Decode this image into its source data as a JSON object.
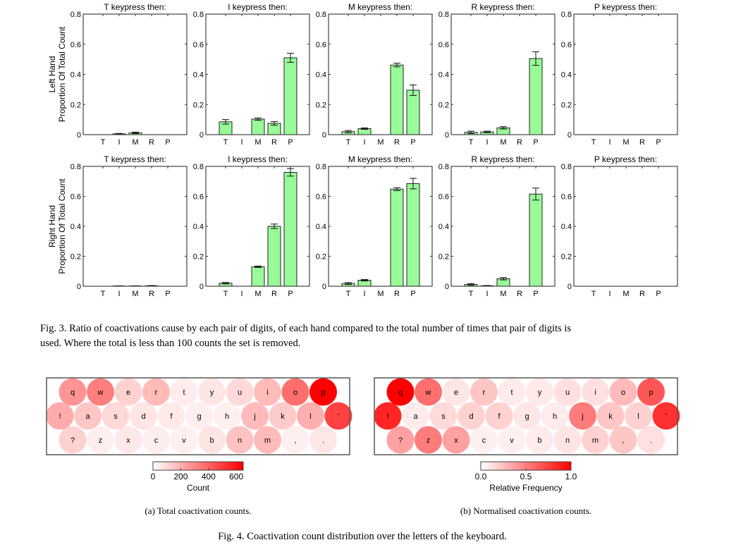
{
  "fig3": {
    "chart_data": {
      "type": "bar",
      "categories": [
        "T",
        "I",
        "M",
        "R",
        "P"
      ],
      "ylim": [
        0,
        0.8
      ],
      "yticks": [
        "0",
        "0.2",
        "0.4",
        "0.6",
        "0.8"
      ],
      "bar_color": "#98fb98",
      "rows": [
        {
          "ylabel": [
            "Left Hand",
            "Proportion Of Total Count"
          ],
          "panels": [
            {
              "title": "T keypress then:",
              "values": [
                0,
                0.005,
                0.012,
                0,
                0
              ],
              "errors": [
                0,
                0.003,
                0.005,
                0,
                0
              ]
            },
            {
              "title": "I keypress then:",
              "values": [
                0.085,
                0,
                0.103,
                0.075,
                0.51
              ],
              "errors": [
                0.015,
                0,
                0.008,
                0.012,
                0.03
              ]
            },
            {
              "title": "M keypress then:",
              "values": [
                0.02,
                0.04,
                0,
                0.462,
                0.295
              ],
              "errors": [
                0.008,
                0.005,
                0,
                0.012,
                0.035
              ]
            },
            {
              "title": "R keypress then:",
              "values": [
                0.015,
                0.018,
                0.045,
                0,
                0.505
              ],
              "errors": [
                0.008,
                0.005,
                0.008,
                0,
                0.045
              ]
            },
            {
              "title": "P keypress then:",
              "values": [
                0,
                0,
                0,
                0,
                0
              ],
              "errors": [
                0,
                0,
                0,
                0,
                0
              ]
            }
          ]
        },
        {
          "ylabel": [
            "Right Hand",
            "Proportion Of Total Count"
          ],
          "panels": [
            {
              "title": "T keypress then:",
              "values": [
                0,
                0.002,
                0.002,
                0.003,
                0
              ],
              "errors": [
                0,
                0.001,
                0.001,
                0.002,
                0
              ]
            },
            {
              "title": "I keypress then:",
              "values": [
                0.02,
                0,
                0.13,
                0.4,
                0.76
              ],
              "errors": [
                0.005,
                0,
                0.005,
                0.015,
                0.025
              ]
            },
            {
              "title": "M keypress then:",
              "values": [
                0.018,
                0.04,
                0,
                0.648,
                0.685
              ],
              "errors": [
                0.006,
                0.005,
                0,
                0.01,
                0.035
              ]
            },
            {
              "title": "R keypress then:",
              "values": [
                0.012,
                0.003,
                0.05,
                0,
                0.615
              ],
              "errors": [
                0.006,
                0.002,
                0.008,
                0,
                0.04
              ]
            },
            {
              "title": "P keypress then:",
              "values": [
                0,
                0,
                0,
                0,
                0
              ],
              "errors": [
                0,
                0,
                0,
                0,
                0
              ]
            }
          ]
        }
      ]
    },
    "caption_lines": [
      "Fig. 3.  Ratio of coactivations cause by each pair of digits, of each hand compared to the total number of times that pair of digits is",
      "used. Where the total is less than 100 counts the set is removed."
    ]
  },
  "fig4": {
    "keyboard_rows": [
      [
        "q",
        "w",
        "e",
        "r",
        "t",
        "y",
        "u",
        "i",
        "o",
        "p"
      ],
      [
        "!",
        "a",
        "s",
        "d",
        "f",
        "g",
        "h",
        "j",
        "k",
        "l",
        "'"
      ],
      [
        "?",
        "z",
        "x",
        "c",
        "v",
        "b",
        "n",
        "m",
        ",",
        "."
      ]
    ],
    "maps": [
      {
        "type": "heatmap",
        "colorbar_label": "Count",
        "range": [
          0,
          650
        ],
        "ticks": [
          "0",
          "200",
          "400",
          "600"
        ],
        "tick_values": [
          0,
          200,
          400,
          600
        ],
        "values": [
          [
            260,
            320,
            100,
            160,
            30,
            45,
            80,
            160,
            360,
            650
          ],
          [
            200,
            130,
            80,
            50,
            35,
            25,
            20,
            160,
            120,
            190,
            480
          ],
          [
            100,
            25,
            40,
            25,
            20,
            50,
            140,
            160,
            20,
            45
          ]
        ],
        "subcaption": "(a) Total coactivation counts."
      },
      {
        "type": "heatmap",
        "colorbar_label": "Relative Frequency",
        "range": [
          0,
          1
        ],
        "ticks": [
          "0.0",
          "0.5",
          "1.0"
        ],
        "tick_values": [
          0,
          0.5,
          1
        ],
        "values": [
          [
            1.0,
            0.55,
            0.07,
            0.2,
            0.05,
            0.06,
            0.1,
            0.1,
            0.25,
            0.65
          ],
          [
            0.85,
            0.05,
            0.12,
            0.15,
            0.15,
            0.07,
            0.05,
            0.5,
            0.2,
            0.15,
            0.8
          ],
          [
            0.35,
            0.5,
            0.35,
            0.03,
            0.03,
            0.05,
            0.08,
            0.15,
            0.2,
            0.1
          ]
        ],
        "subcaption": "(b) Normalised coactivation counts."
      }
    ],
    "colormap": [
      "#ffffff",
      "#ff0000"
    ],
    "caption": "Fig. 4.  Coactivation count distribution over the letters of the keyboard."
  }
}
